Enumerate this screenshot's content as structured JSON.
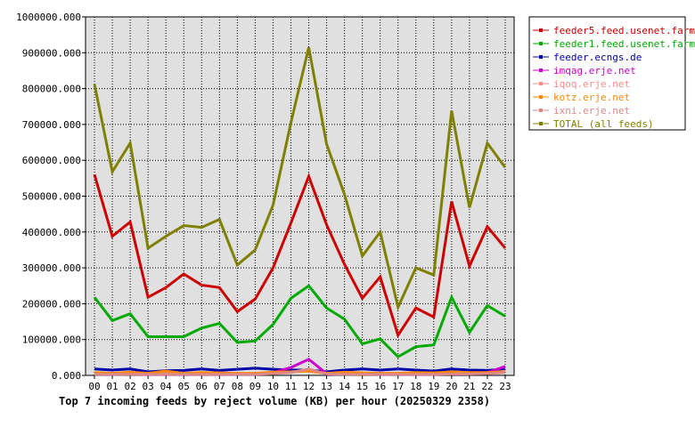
{
  "caption": "Top 7 incoming feeds by reject volume (KB) per hour (20250329 2358)",
  "chart_data": {
    "type": "line",
    "title": "Top 7 incoming feeds by reject volume (KB) per hour (20250329 2358)",
    "categories": [
      "00",
      "01",
      "02",
      "03",
      "04",
      "05",
      "06",
      "07",
      "08",
      "09",
      "10",
      "11",
      "12",
      "13",
      "14",
      "15",
      "16",
      "17",
      "18",
      "19",
      "20",
      "21",
      "22",
      "23"
    ],
    "ylim": [
      0,
      1000000
    ],
    "yticks": [
      0,
      100000,
      200000,
      300000,
      400000,
      500000,
      600000,
      700000,
      800000,
      900000,
      1000000
    ],
    "ytick_labels": [
      "0.000",
      "100000.000",
      "200000.000",
      "300000.000",
      "400000.000",
      "500000.000",
      "600000.000",
      "700000.000",
      "800000.000",
      "900000.000",
      "1000000.000"
    ],
    "grid": true,
    "legend_position": "right",
    "series": [
      {
        "name": "feeder5.feed.usenet.farm",
        "color": "#cc0000",
        "values": [
          560000,
          388000,
          428000,
          218000,
          245000,
          283000,
          252000,
          245000,
          178000,
          213000,
          300000,
          425000,
          555000,
          420000,
          310000,
          215000,
          275000,
          112000,
          188000,
          163000,
          485000,
          305000,
          415000,
          355000
        ]
      },
      {
        "name": "feeder1.feed.usenet.farm",
        "color": "#00aa00",
        "values": [
          218000,
          153000,
          172000,
          108000,
          108000,
          108000,
          132000,
          145000,
          92000,
          96000,
          142000,
          215000,
          250000,
          188000,
          157000,
          88000,
          102000,
          52000,
          80000,
          85000,
          218000,
          120000,
          195000,
          165000
        ]
      },
      {
        "name": "feeder.ecngs.de",
        "color": "#0000aa",
        "values": [
          18000,
          15000,
          18000,
          10000,
          13000,
          14000,
          18000,
          14000,
          17000,
          20000,
          17000,
          15000,
          15000,
          10000,
          15000,
          18000,
          15000,
          18000,
          15000,
          12000,
          18000,
          15000,
          14000,
          17000
        ]
      },
      {
        "name": "imqag.erje.net",
        "color": "#cc00cc",
        "values": [
          4000,
          3000,
          4000,
          3000,
          3000,
          3000,
          3000,
          3000,
          3000,
          3000,
          8000,
          22000,
          45000,
          5000,
          4000,
          4000,
          3000,
          3000,
          3000,
          3000,
          4000,
          4000,
          8000,
          25000
        ]
      },
      {
        "name": "iqoq.erje.net",
        "color": "#ff8888",
        "values": [
          5000,
          4000,
          5000,
          4000,
          4000,
          4000,
          4000,
          4000,
          4000,
          4000,
          6000,
          10000,
          14000,
          5000,
          5000,
          4000,
          4000,
          4000,
          4000,
          4000,
          5000,
          5000,
          6000,
          12000
        ]
      },
      {
        "name": "kotz.erje.net",
        "color": "#ff8800",
        "values": [
          8000,
          6000,
          9000,
          6000,
          12000,
          6000,
          8000,
          7000,
          6000,
          6000,
          9000,
          10000,
          12000,
          6000,
          9000,
          7000,
          6000,
          6000,
          8000,
          7000,
          10000,
          8000,
          8000,
          10000
        ]
      },
      {
        "name": "ixni.erje.net",
        "color": "#dd8888",
        "values": [
          3000,
          3000,
          3000,
          3000,
          3000,
          3000,
          3000,
          3000,
          3000,
          3000,
          5000,
          8000,
          18000,
          4000,
          3000,
          3000,
          3000,
          3000,
          3000,
          3000,
          4000,
          4000,
          5000,
          8000
        ]
      },
      {
        "name": "TOTAL (all feeds)",
        "color": "#808000",
        "values": [
          812000,
          568000,
          648000,
          355000,
          388000,
          418000,
          413000,
          435000,
          308000,
          350000,
          475000,
          705000,
          915000,
          645000,
          505000,
          333000,
          400000,
          190000,
          300000,
          280000,
          738000,
          468000,
          648000,
          580000
        ]
      }
    ]
  }
}
